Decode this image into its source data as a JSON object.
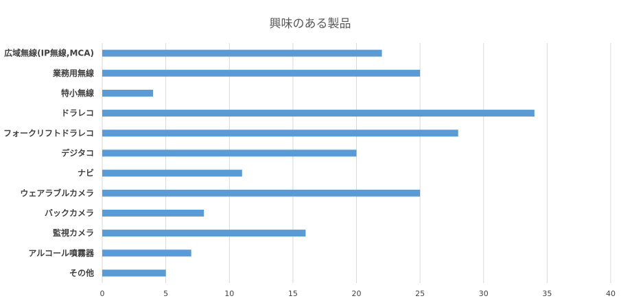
{
  "chart_data": {
    "type": "bar",
    "orientation": "horizontal",
    "title": "興味のある製品",
    "xlabel": "",
    "ylabel": "",
    "categories": [
      "広域無線(IP無線,MCA)",
      "業務用無線",
      "特小無線",
      "ドラレコ",
      "フォークリフトドラレコ",
      "デジタコ",
      "ナビ",
      "ウェアラブルカメラ",
      "バックカメラ",
      "監視カメラ",
      "アルコール噴霧器",
      "その他"
    ],
    "values": [
      22,
      25,
      4,
      34,
      28,
      20,
      11,
      25,
      8,
      16,
      7,
      5
    ],
    "xlim": [
      0,
      40
    ],
    "xticks": [
      0,
      5,
      10,
      15,
      20,
      25,
      30,
      35,
      40
    ],
    "grid": "vertical",
    "legend": "none",
    "bar_color": "#5b9bd5",
    "grid_color": "#d9d9d9",
    "text_color": "#404040"
  }
}
